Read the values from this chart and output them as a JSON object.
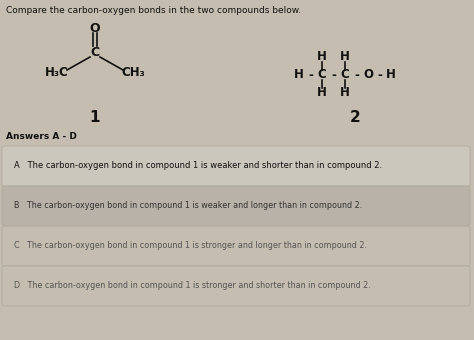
{
  "title": "Compare the carbon-oxygen bonds in the two compounds below.",
  "title_fontsize": 6.5,
  "background_color": "#c4bdb0",
  "answers_label": "Answers A - D",
  "answer_A": "A   The carbon-oxygen bond in compound 1 is weaker and shorter than in compound 2.",
  "answer_B": "B   The carbon-oxygen bond in compound 1 is weaker and longer than in compound 2.",
  "answer_C": "C   The carbon-oxygen bond in compound 1 is stronger and longer than in compound 2.",
  "answer_D": "D   The carbon-oxygen bond in compound 1 is stronger and shorter than in compound 2.",
  "label_1": "1",
  "label_2": "2",
  "box_A_color": "#ccc7bd",
  "box_B_color": "#b8b2a8",
  "text_dark": "#111111",
  "text_mid": "#333333",
  "text_light": "#555555"
}
